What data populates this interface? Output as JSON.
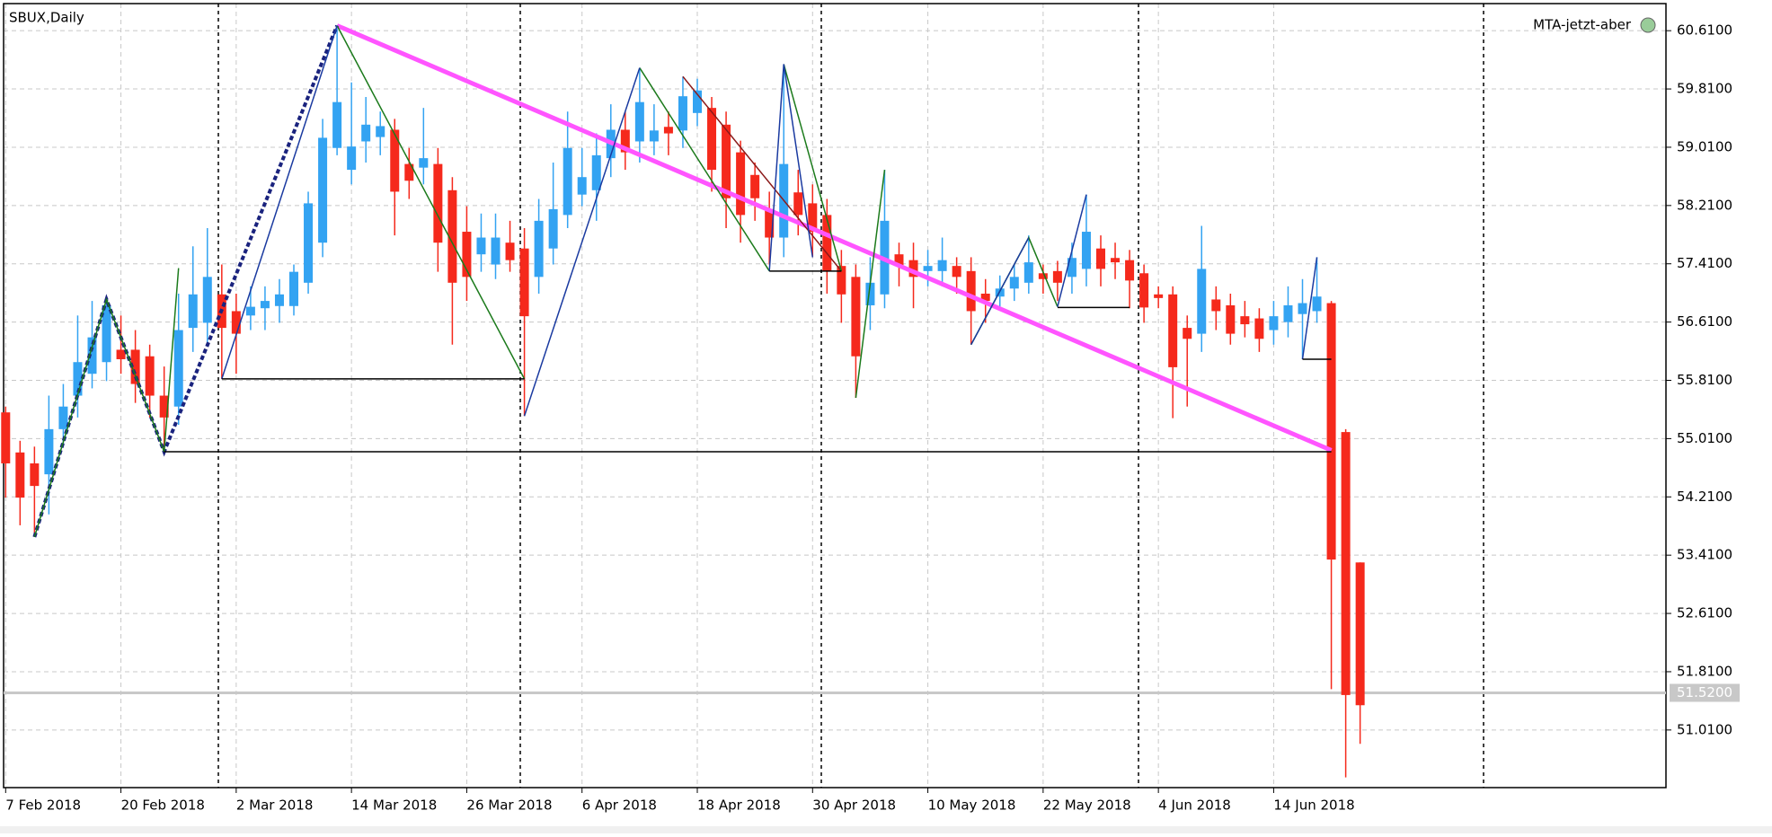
{
  "chart_data": {
    "type": "candlestick",
    "title": "SBUX,Daily",
    "indicator": "MTA-jetzt-aber",
    "categories": [
      "7 Feb 2018",
      null,
      null,
      null,
      null,
      null,
      null,
      null,
      "20 Feb 2018",
      null,
      null,
      null,
      null,
      null,
      null,
      null,
      "2 Mar 2018",
      null,
      null,
      null,
      null,
      null,
      null,
      null,
      "14 Mar 2018",
      null,
      null,
      null,
      null,
      null,
      null,
      null,
      "26 Mar 2018",
      null,
      null,
      null,
      null,
      null,
      null,
      null,
      "6 Apr 2018",
      null,
      null,
      null,
      null,
      null,
      null,
      null,
      "18 Apr 2018",
      null,
      null,
      null,
      null,
      null,
      null,
      null,
      "30 Apr 2018",
      null,
      null,
      null,
      null,
      null,
      null,
      null,
      "10 May 2018",
      null,
      null,
      null,
      null,
      null,
      null,
      null,
      "22 May 2018",
      null,
      null,
      null,
      null,
      null,
      null,
      null,
      "4 Jun 2018",
      null,
      null,
      null,
      null,
      null,
      null,
      null,
      "14 Jun 2018",
      null,
      null,
      null,
      null,
      null,
      null
    ],
    "ohlc": [
      [
        55.37,
        55.45,
        54.2,
        54.67
      ],
      [
        54.82,
        54.98,
        53.82,
        54.2
      ],
      [
        54.67,
        54.9,
        53.66,
        54.36
      ],
      [
        54.52,
        55.6,
        53.97,
        55.14
      ],
      [
        55.14,
        55.76,
        54.9,
        55.45
      ],
      [
        55.6,
        56.7,
        55.3,
        56.06
      ],
      [
        55.9,
        56.9,
        55.7,
        56.4
      ],
      [
        56.06,
        56.92,
        55.8,
        56.84
      ],
      [
        56.23,
        56.7,
        55.9,
        56.1
      ],
      [
        56.23,
        56.5,
        55.5,
        55.76
      ],
      [
        56.14,
        56.3,
        55.3,
        55.6
      ],
      [
        55.6,
        56.0,
        54.83,
        55.3
      ],
      [
        55.45,
        57.0,
        55.2,
        56.5
      ],
      [
        56.53,
        57.65,
        56.2,
        56.99
      ],
      [
        56.6,
        57.9,
        56.3,
        57.23
      ],
      [
        56.99,
        57.4,
        55.83,
        56.53
      ],
      [
        56.76,
        57.0,
        55.9,
        56.45
      ],
      [
        56.7,
        57.1,
        56.5,
        56.82
      ],
      [
        56.8,
        57.1,
        56.5,
        56.9
      ],
      [
        56.83,
        57.2,
        56.6,
        56.99
      ],
      [
        56.83,
        57.4,
        56.7,
        57.3
      ],
      [
        57.15,
        58.4,
        57.0,
        58.24
      ],
      [
        57.7,
        59.4,
        57.5,
        59.14
      ],
      [
        59.0,
        60.68,
        58.9,
        59.63
      ],
      [
        58.7,
        59.9,
        58.5,
        59.02
      ],
      [
        59.09,
        59.7,
        58.8,
        59.32
      ],
      [
        59.15,
        59.5,
        58.9,
        59.3
      ],
      [
        59.25,
        59.4,
        57.8,
        58.4
      ],
      [
        58.78,
        59.0,
        58.3,
        58.55
      ],
      [
        58.73,
        59.55,
        58.5,
        58.86
      ],
      [
        58.78,
        59.0,
        57.3,
        57.7
      ],
      [
        58.42,
        58.6,
        56.3,
        57.15
      ],
      [
        57.85,
        58.2,
        56.9,
        57.23
      ],
      [
        57.54,
        58.1,
        57.3,
        57.77
      ],
      [
        57.4,
        58.1,
        57.2,
        57.77
      ],
      [
        57.7,
        58.0,
        57.3,
        57.46
      ],
      [
        57.62,
        57.9,
        55.32,
        56.69
      ],
      [
        57.23,
        58.3,
        57.0,
        58.0
      ],
      [
        57.62,
        58.8,
        57.4,
        58.16
      ],
      [
        58.08,
        59.5,
        57.9,
        59.0
      ],
      [
        58.36,
        59.0,
        58.2,
        58.6
      ],
      [
        58.42,
        59.2,
        58.0,
        58.9
      ],
      [
        58.86,
        59.6,
        58.6,
        59.25
      ],
      [
        59.25,
        59.5,
        58.7,
        58.94
      ],
      [
        59.09,
        60.1,
        58.8,
        59.63
      ],
      [
        59.09,
        59.6,
        58.9,
        59.24
      ],
      [
        59.29,
        59.5,
        58.9,
        59.2
      ],
      [
        59.24,
        59.98,
        59.0,
        59.71
      ],
      [
        59.48,
        59.95,
        59.3,
        59.79
      ],
      [
        59.55,
        59.7,
        58.4,
        58.7
      ],
      [
        59.32,
        59.5,
        57.9,
        58.31
      ],
      [
        58.94,
        59.1,
        57.7,
        58.08
      ],
      [
        58.63,
        58.8,
        58.0,
        58.31
      ],
      [
        58.16,
        58.4,
        57.4,
        57.77
      ],
      [
        57.77,
        60.15,
        57.5,
        58.78
      ],
      [
        58.39,
        58.7,
        57.8,
        58.08
      ],
      [
        58.24,
        58.5,
        57.5,
        57.85
      ],
      [
        58.08,
        58.3,
        57.0,
        57.31
      ],
      [
        57.38,
        57.6,
        56.6,
        56.99
      ],
      [
        57.23,
        57.4,
        55.57,
        56.14
      ],
      [
        56.84,
        57.5,
        56.5,
        57.15
      ],
      [
        56.99,
        58.7,
        56.8,
        58.0
      ],
      [
        57.54,
        57.7,
        57.1,
        57.38
      ],
      [
        57.46,
        57.7,
        56.8,
        57.23
      ],
      [
        57.31,
        57.6,
        57.1,
        57.38
      ],
      [
        57.31,
        57.77,
        57.1,
        57.46
      ],
      [
        57.38,
        57.5,
        57.0,
        57.23
      ],
      [
        57.31,
        57.5,
        56.3,
        56.76
      ],
      [
        57.0,
        57.2,
        56.6,
        56.9
      ],
      [
        56.96,
        57.25,
        56.8,
        57.07
      ],
      [
        57.07,
        57.4,
        56.9,
        57.23
      ],
      [
        57.15,
        57.8,
        57.0,
        57.43
      ],
      [
        57.28,
        57.4,
        57.0,
        57.2
      ],
      [
        57.31,
        57.45,
        56.9,
        57.15
      ],
      [
        57.23,
        57.7,
        57.0,
        57.49
      ],
      [
        57.34,
        58.36,
        57.1,
        57.85
      ],
      [
        57.62,
        57.8,
        57.1,
        57.34
      ],
      [
        57.49,
        57.7,
        57.2,
        57.43
      ],
      [
        57.46,
        57.6,
        56.8,
        57.18
      ],
      [
        57.28,
        57.4,
        56.6,
        56.81
      ],
      [
        56.99,
        57.1,
        56.8,
        56.94
      ],
      [
        56.99,
        57.1,
        55.29,
        55.99
      ],
      [
        56.53,
        56.7,
        55.45,
        56.38
      ],
      [
        56.45,
        57.93,
        56.2,
        57.34
      ],
      [
        56.92,
        57.1,
        56.5,
        56.76
      ],
      [
        56.84,
        57.0,
        56.3,
        56.45
      ],
      [
        56.69,
        56.9,
        56.4,
        56.58
      ],
      [
        56.66,
        56.8,
        56.2,
        56.38
      ],
      [
        56.5,
        56.9,
        56.3,
        56.69
      ],
      [
        56.61,
        57.1,
        56.4,
        56.84
      ],
      [
        56.72,
        57.2,
        56.1,
        56.87
      ],
      [
        56.76,
        57.5,
        56.6,
        56.96
      ],
      [
        56.87,
        56.9,
        51.57,
        53.35
      ],
      [
        55.1,
        55.14,
        50.36,
        51.49
      ],
      [
        53.31,
        53.31,
        50.82,
        51.35
      ]
    ],
    "up_color": "#33a3f2",
    "down_color": "#f5291c",
    "ylim": [
      50.219,
      60.982
    ],
    "yticks": [
      {
        "value": 60.61,
        "label": "60.6100"
      },
      {
        "value": 59.81,
        "label": "59.8100"
      },
      {
        "value": 59.01,
        "label": "59.0100"
      },
      {
        "value": 58.21,
        "label": "58.2100"
      },
      {
        "value": 57.41,
        "label": "57.4100"
      },
      {
        "value": 56.61,
        "label": "56.6100"
      },
      {
        "value": 55.81,
        "label": "55.8100"
      },
      {
        "value": 55.01,
        "label": "55.0100"
      },
      {
        "value": 54.21,
        "label": "54.2100"
      },
      {
        "value": 53.41,
        "label": "53.4100"
      },
      {
        "value": 52.61,
        "label": "52.6100"
      },
      {
        "value": 51.81,
        "label": "51.8100"
      },
      {
        "value": 51.01,
        "label": "51.0100"
      }
    ],
    "bid": {
      "value": 51.52,
      "label": "51.5200"
    },
    "grid": true,
    "overlays": [
      {
        "color": "#ff55ff",
        "width": 5,
        "dash": false,
        "x": [
          23,
          92
        ],
        "values": [
          60.68,
          54.85
        ]
      },
      {
        "color": "#1a237e",
        "width": 4,
        "dash": true,
        "x": [
          2,
          7,
          11,
          23
        ],
        "values": [
          53.66,
          56.92,
          54.83,
          60.68
        ]
      },
      {
        "color": "#1b7a1b",
        "width": 1.5,
        "dash": false,
        "x": [
          2,
          7,
          11,
          12
        ],
        "values": [
          53.66,
          56.92,
          54.83,
          57.35
        ]
      },
      {
        "color": "#1b7a1b",
        "width": 1.5,
        "dash": false,
        "x": [
          23,
          36
        ],
        "values": [
          60.68,
          55.83
        ]
      },
      {
        "color": "#1b7a1b",
        "width": 1.5,
        "dash": false,
        "x": [
          44,
          53
        ],
        "values": [
          60.1,
          57.31
        ]
      },
      {
        "color": "#8b1a1a",
        "width": 1.5,
        "dash": false,
        "x": [
          47,
          58
        ],
        "values": [
          59.98,
          57.31
        ]
      },
      {
        "color": "#1b7a1b",
        "width": 1.5,
        "dash": false,
        "x": [
          54,
          58
        ],
        "values": [
          60.15,
          57.31
        ]
      },
      {
        "color": "#1b7a1b",
        "width": 1.5,
        "dash": false,
        "x": [
          59,
          61
        ],
        "values": [
          55.57,
          58.7
        ]
      },
      {
        "color": "#1b7a1b",
        "width": 1.5,
        "dash": false,
        "x": [
          67,
          71,
          73
        ],
        "values": [
          56.3,
          57.77,
          56.82
        ]
      },
      {
        "color": "#1a3aa0",
        "width": 1.5,
        "dash": false,
        "x": [
          15,
          23
        ],
        "values": [
          55.83,
          60.68
        ]
      },
      {
        "color": "#1a3aa0",
        "width": 1.5,
        "dash": false,
        "x": [
          36,
          44
        ],
        "values": [
          55.32,
          60.1
        ]
      },
      {
        "color": "#1a3aa0",
        "width": 1.5,
        "dash": false,
        "x": [
          53,
          54,
          56
        ],
        "values": [
          57.31,
          60.15,
          57.5
        ]
      },
      {
        "color": "#1a3aa0",
        "width": 1.5,
        "dash": false,
        "x": [
          67,
          71
        ],
        "values": [
          56.3,
          57.77
        ]
      },
      {
        "color": "#1a3aa0",
        "width": 1.5,
        "dash": false,
        "x": [
          73,
          75
        ],
        "values": [
          56.82,
          58.36
        ]
      },
      {
        "color": "#1a3aa0",
        "width": 1.5,
        "dash": false,
        "x": [
          90,
          91
        ],
        "values": [
          56.1,
          57.5
        ]
      },
      {
        "color": "#000000",
        "width": 1.5,
        "dash": false,
        "x": [
          11,
          92
        ],
        "values": [
          54.83,
          54.83
        ]
      },
      {
        "color": "#000000",
        "width": 1.5,
        "dash": false,
        "x": [
          15,
          36
        ],
        "values": [
          55.83,
          55.83
        ]
      },
      {
        "color": "#000000",
        "width": 1.5,
        "dash": false,
        "x": [
          53,
          58
        ],
        "values": [
          57.31,
          57.31
        ]
      },
      {
        "color": "#000000",
        "width": 1.5,
        "dash": false,
        "x": [
          73,
          78
        ],
        "values": [
          56.81,
          56.81
        ]
      },
      {
        "color": "#000000",
        "width": 1.5,
        "dash": false,
        "x": [
          90,
          92
        ],
        "values": [
          56.1,
          56.1
        ]
      }
    ]
  }
}
